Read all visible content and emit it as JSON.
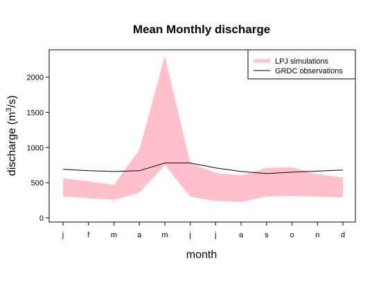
{
  "chart_data": {
    "type": "area",
    "title": "Mean Monthly discharge",
    "xlabel": "month",
    "ylabel_main": "discharge (m",
    "ylabel_sup": "3",
    "ylabel_tail": "/s)",
    "categories": [
      "j",
      "f",
      "m",
      "a",
      "m",
      "j",
      "j",
      "a",
      "s",
      "o",
      "n",
      "d"
    ],
    "ylim": [
      -60,
      2390
    ],
    "yticks": [
      0,
      500,
      1000,
      1500,
      2000
    ],
    "ytick_labels": [
      "0",
      "500",
      "1000",
      "1500",
      "2000"
    ],
    "series": [
      {
        "name": "LPJ simulations",
        "kind": "band",
        "color": "#FFC0CB",
        "lower": [
          300,
          280,
          255,
          360,
          750,
          300,
          240,
          225,
          305,
          315,
          300,
          290
        ],
        "upper": [
          565,
          520,
          470,
          970,
          2305,
          780,
          640,
          605,
          710,
          720,
          620,
          575
        ]
      },
      {
        "name": "GRDC observations",
        "kind": "line",
        "color": "#000000",
        "values": [
          690,
          670,
          660,
          670,
          780,
          780,
          710,
          660,
          630,
          650,
          665,
          680
        ]
      }
    ],
    "legend_position": "top-right",
    "grid": false
  }
}
